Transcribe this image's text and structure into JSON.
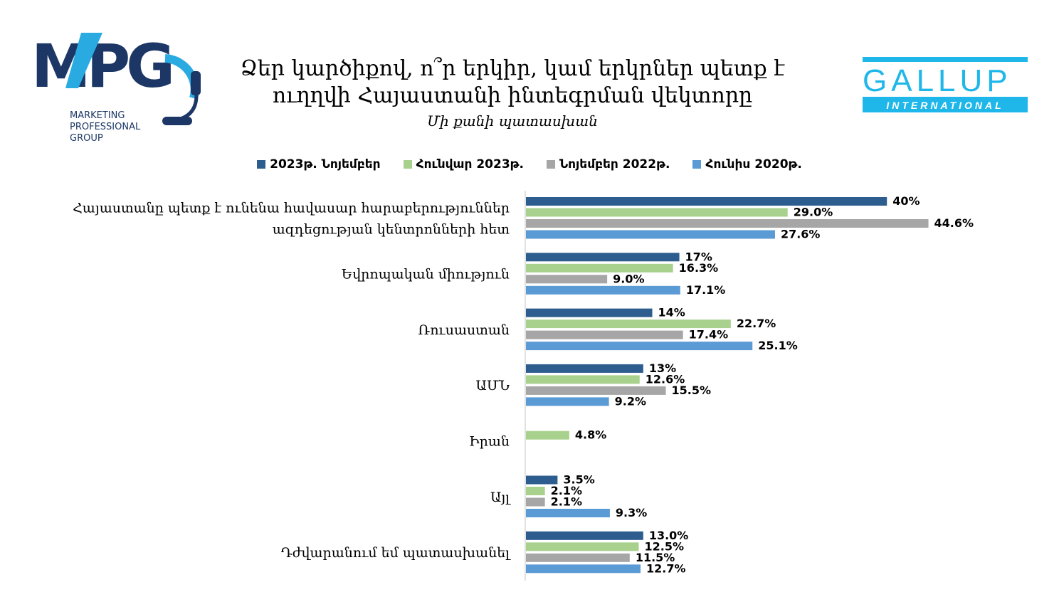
{
  "logos": {
    "mpg": {
      "mark": "MPG",
      "lines": [
        "MARKETING",
        "PROFESSIONAL",
        "GROUP"
      ]
    },
    "gallup": {
      "mark": "GALLUP",
      "tagline": "INTERNATIONAL"
    }
  },
  "colors": {
    "series": [
      "#2D5D8E",
      "#A9D18E",
      "#A6A6A6",
      "#5B9BD5"
    ],
    "mpg_navy": "#1C3766",
    "mpg_cyan": "#29ABE2",
    "gallup_cyan": "#1FB7EA"
  },
  "chart_data": {
    "type": "bar",
    "orientation": "horizontal",
    "title": [
      "Ձեր կարծիքով, ո՞ր երկիր, կամ երկրներ պետք է",
      "ուղղվի Հայաստանի ինտեգրման վեկտորը"
    ],
    "subtitle": "Մի քանի պատասխան",
    "legend_position": "top",
    "grid": false,
    "xlim": [
      0,
      50
    ],
    "categories": [
      [
        "Հայաստանը պետք է ունենա հավասար հարաբերություններ",
        "ազդեցության կենտրոնների հետ"
      ],
      [
        "Եվրոպական միություն"
      ],
      [
        "Ռուսաստան"
      ],
      [
        "ԱՄՆ"
      ],
      [
        "Իրան"
      ],
      [
        "Այլ"
      ],
      [
        "Դժվարանում եմ պատասխանել"
      ]
    ],
    "series": [
      {
        "name": "2023թ. Նոյեմբեր",
        "values": [
          40,
          17,
          14,
          13,
          null,
          3.5,
          13.0
        ],
        "labels": [
          "40%",
          "17%",
          "14%",
          "13%",
          "",
          "3.5%",
          "13.0%"
        ]
      },
      {
        "name": "Հունվար 2023թ.",
        "values": [
          29.0,
          16.3,
          22.7,
          12.6,
          4.8,
          2.1,
          12.5
        ],
        "labels": [
          "29.0%",
          "16.3%",
          "22.7%",
          "12.6%",
          "4.8%",
          "2.1%",
          "12.5%"
        ]
      },
      {
        "name": "Նոյեմբեր 2022թ.",
        "values": [
          44.6,
          9.0,
          17.4,
          15.5,
          null,
          2.1,
          11.5
        ],
        "labels": [
          "44.6%",
          "9.0%",
          "17.4%",
          "15.5%",
          "",
          "2.1%",
          "11.5%"
        ]
      },
      {
        "name": "Հունիս 2020թ.",
        "values": [
          27.6,
          17.1,
          25.1,
          9.2,
          null,
          9.3,
          12.7
        ],
        "labels": [
          "27.6%",
          "17.1%",
          "25.1%",
          "9.2%",
          "",
          "9.3%",
          "12.7%"
        ]
      }
    ]
  }
}
